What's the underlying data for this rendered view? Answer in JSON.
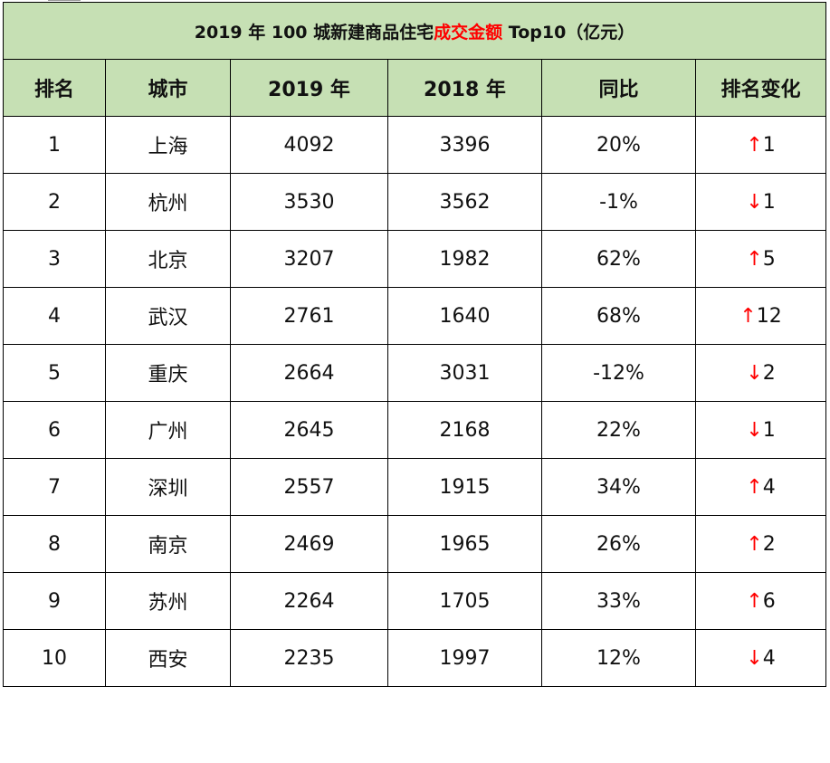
{
  "title": {
    "prefix": "2019 年 100 城新建商品住宅",
    "highlight": "成交金额",
    "suffix": " Top10（亿元）",
    "highlight_color": "#ff0000"
  },
  "header_bg": "#c6e0b4",
  "columns": [
    "排名",
    "城市",
    "2019 年",
    "2018 年",
    "同比",
    "排名变化"
  ],
  "rows": [
    {
      "rank": "1",
      "city": "上海",
      "y2019": "4092",
      "y2018": "3396",
      "yoy": "20%",
      "arrow": "↑",
      "change": "1"
    },
    {
      "rank": "2",
      "city": "杭州",
      "y2019": "3530",
      "y2018": "3562",
      "yoy": "-1%",
      "arrow": "↓",
      "change": "1"
    },
    {
      "rank": "3",
      "city": "北京",
      "y2019": "3207",
      "y2018": "1982",
      "yoy": "62%",
      "arrow": "↑",
      "change": "5"
    },
    {
      "rank": "4",
      "city": "武汉",
      "y2019": "2761",
      "y2018": "1640",
      "yoy": "68%",
      "arrow": "↑",
      "change": "12"
    },
    {
      "rank": "5",
      "city": "重庆",
      "y2019": "2664",
      "y2018": "3031",
      "yoy": "-12%",
      "arrow": "↓",
      "change": "2"
    },
    {
      "rank": "6",
      "city": "广州",
      "y2019": "2645",
      "y2018": "2168",
      "yoy": "22%",
      "arrow": "↓",
      "change": "1"
    },
    {
      "rank": "7",
      "city": "深圳",
      "y2019": "2557",
      "y2018": "1915",
      "yoy": "34%",
      "arrow": "↑",
      "change": "4"
    },
    {
      "rank": "8",
      "city": "南京",
      "y2019": "2469",
      "y2018": "1965",
      "yoy": "26%",
      "arrow": "↑",
      "change": "2"
    },
    {
      "rank": "9",
      "city": "苏州",
      "y2019": "2264",
      "y2018": "1705",
      "yoy": "33%",
      "arrow": "↑",
      "change": "6"
    },
    {
      "rank": "10",
      "city": "西安",
      "y2019": "2235",
      "y2018": "1997",
      "yoy": "12%",
      "arrow": "↓",
      "change": "4"
    }
  ]
}
